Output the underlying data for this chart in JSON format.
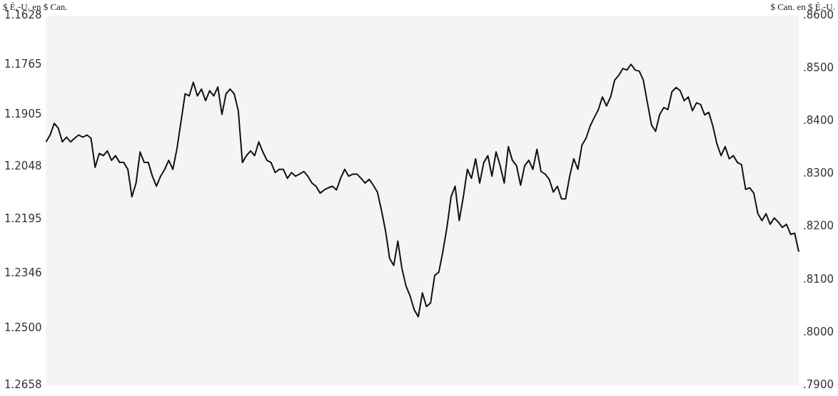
{
  "chart_data": {
    "type": "line",
    "ylabel": "$ É.-U. en $ Can.",
    "y2label": "$ Can. en $ É.-U.",
    "categories": [
      null,
      null,
      null,
      null,
      null,
      null,
      null,
      null,
      null,
      null,
      null,
      null,
      null,
      null,
      null,
      null,
      null,
      null,
      null,
      null,
      null,
      null,
      null,
      null,
      null,
      null,
      null,
      null,
      null,
      null,
      null,
      null,
      null,
      null,
      null,
      null,
      null,
      null,
      null,
      null,
      null,
      null,
      null,
      null,
      null,
      null,
      null,
      null,
      null,
      null,
      null,
      null,
      null,
      null,
      null,
      null,
      null,
      null,
      null,
      null,
      null,
      null,
      null,
      null,
      null,
      null,
      null,
      null,
      null,
      null,
      null,
      null,
      null,
      null,
      null,
      null,
      null,
      null,
      null,
      null,
      null,
      null,
      null,
      null,
      null,
      null,
      null,
      null,
      null,
      null,
      null,
      null,
      null,
      null,
      null,
      null,
      null,
      null,
      null,
      null,
      null,
      null,
      null,
      null,
      null,
      null,
      null,
      null,
      null,
      null,
      null,
      null,
      null,
      null,
      null,
      null,
      null,
      null,
      null,
      null,
      null,
      null,
      null,
      null,
      null,
      null,
      null,
      null,
      null,
      null,
      null,
      null,
      null,
      null,
      null,
      null,
      null,
      null,
      null,
      null,
      null,
      null,
      null,
      null,
      null,
      null,
      null,
      null,
      null,
      null,
      null,
      null,
      null,
      null,
      null,
      null,
      null,
      null,
      null,
      null,
      null,
      null,
      null,
      null,
      null,
      null,
      null,
      null,
      null,
      null,
      null,
      null,
      null,
      null,
      null,
      null,
      null,
      null,
      null,
      null,
      null,
      null,
      null,
      null,
      null
    ],
    "series": [
      {
        "color": "#111111",
        "axis": "y2",
        "values": [
          0.8361,
          0.8374,
          0.8396,
          0.8387,
          0.8361,
          0.837,
          0.8361,
          0.8368,
          0.8374,
          0.837,
          0.8374,
          0.8368,
          0.8313,
          0.8339,
          0.8335,
          0.8344,
          0.8326,
          0.8335,
          0.8322,
          0.8322,
          0.8309,
          0.8257,
          0.8283,
          0.8342,
          0.8322,
          0.8322,
          0.8296,
          0.8277,
          0.8296,
          0.8309,
          0.8326,
          0.8309,
          0.8348,
          0.84,
          0.8452,
          0.8448,
          0.8474,
          0.8448,
          0.8461,
          0.8439,
          0.8458,
          0.8448,
          0.8465,
          0.8413,
          0.8452,
          0.8461,
          0.8452,
          0.842,
          0.8322,
          0.8335,
          0.8344,
          0.8335,
          0.8361,
          0.8342,
          0.8326,
          0.8322,
          0.8303,
          0.8309,
          0.8309,
          0.8292,
          0.8303,
          0.8296,
          0.83,
          0.8305,
          0.8296,
          0.8283,
          0.8277,
          0.8264,
          0.827,
          0.8274,
          0.8277,
          0.827,
          0.8292,
          0.8309,
          0.8296,
          0.83,
          0.83,
          0.8292,
          0.8283,
          0.829,
          0.8279,
          0.8266,
          0.8231,
          0.8192,
          0.814,
          0.8127,
          0.8173,
          0.8121,
          0.8088,
          0.8069,
          0.8043,
          0.803,
          0.8075,
          0.8049,
          0.8056,
          0.8108,
          0.8114,
          0.8153,
          0.8199,
          0.8257,
          0.8277,
          0.8212,
          0.8257,
          0.8309,
          0.8292,
          0.8329,
          0.8283,
          0.8322,
          0.8335,
          0.8296,
          0.8342,
          0.8316,
          0.8283,
          0.8352,
          0.8326,
          0.8316,
          0.8279,
          0.8316,
          0.8326,
          0.8309,
          0.8347,
          0.8305,
          0.83,
          0.829,
          0.8266,
          0.8277,
          0.8253,
          0.8253,
          0.8296,
          0.8329,
          0.8309,
          0.8355,
          0.8368,
          0.8391,
          0.8407,
          0.8422,
          0.8446,
          0.8429,
          0.8446,
          0.8478,
          0.8487,
          0.85,
          0.8497,
          0.8508,
          0.8497,
          0.8495,
          0.8478,
          0.8435,
          0.8393,
          0.8381,
          0.8413,
          0.8426,
          0.8422,
          0.8456,
          0.8464,
          0.8458,
          0.8439,
          0.8446,
          0.842,
          0.8435,
          0.8432,
          0.8412,
          0.8417,
          0.8391,
          0.8357,
          0.8335,
          0.8352,
          0.8329,
          0.8335,
          0.8322,
          0.8318,
          0.8271,
          0.8274,
          0.8264,
          0.8225,
          0.8212,
          0.8225,
          0.8205,
          0.8217,
          0.8209,
          0.8199,
          0.8205,
          0.8186,
          0.8188,
          0.8153
        ]
      }
    ],
    "ylim": [
      1.2658,
      1.1628
    ],
    "yticks": [
      1.1628,
      1.1765,
      1.1905,
      1.2048,
      1.2195,
      1.2346,
      {
        "value": 1.25,
        "label": "1.2500"
      },
      1.2658
    ],
    "y2lim": [
      0.79,
      0.86
    ],
    "y2ticks": [
      {
        "value": 0.86,
        "label": ".8600"
      },
      {
        "value": 0.85,
        "label": ".8500"
      },
      {
        "value": 0.84,
        "label": ".8400"
      },
      {
        "value": 0.83,
        "label": ".8300"
      },
      {
        "value": 0.82,
        "label": ".8200"
      },
      {
        "value": 0.81,
        "label": ".8100"
      },
      {
        "value": 0.8,
        "label": ".8000"
      },
      {
        "value": 0.79,
        "label": ".7900"
      }
    ],
    "grid": false,
    "legend": false,
    "marker": "none",
    "line_style": "solid"
  }
}
